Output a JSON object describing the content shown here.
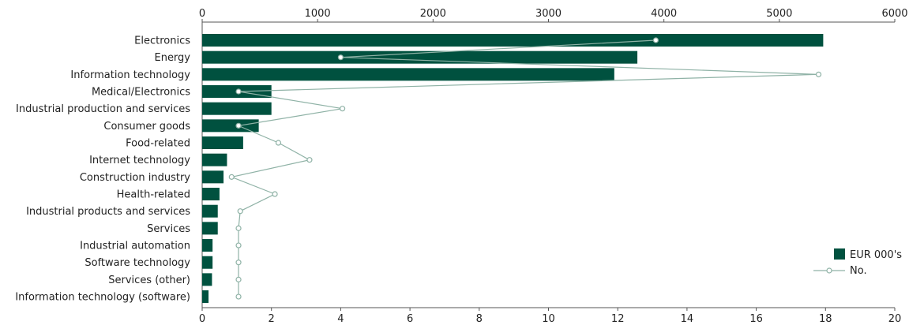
{
  "chart_data": {
    "type": "bar",
    "orientation": "horizontal",
    "categories": [
      "Electronics",
      "Energy",
      "Information technology",
      "Medical/Electronics",
      "Industrial production and services",
      "Consumer goods",
      "Food-related",
      "Internet technology",
      "Construction industry",
      "Health-related",
      "Industrial products and services",
      "Services",
      "Industrial automation",
      "Software technology",
      "Services (other)",
      "Information technology (software)"
    ],
    "series": [
      {
        "name": "EUR 000's",
        "type": "bar",
        "axis": "top",
        "color": "#00513f",
        "values": [
          5380,
          3770,
          3570,
          600,
          600,
          490,
          355,
          215,
          185,
          150,
          135,
          135,
          90,
          90,
          85,
          55
        ]
      },
      {
        "name": "No.",
        "type": "line",
        "axis": "bottom",
        "color": "#8fb2a6",
        "values": [
          13.1,
          4.0,
          17.8,
          1.05,
          4.05,
          1.05,
          2.2,
          3.1,
          0.85,
          2.1,
          1.1,
          1.05,
          1.05,
          1.05,
          1.05,
          1.05
        ]
      }
    ],
    "top_axis": {
      "range": [
        0,
        6000
      ],
      "ticks": [
        "0",
        "1000",
        "2000",
        "3000",
        "4000",
        "5000",
        "6000"
      ]
    },
    "bottom_axis": {
      "range": [
        0,
        20
      ],
      "ticks": [
        "0",
        "2",
        "4",
        "6",
        "8",
        "10",
        "12",
        "14",
        "16",
        "18",
        "20"
      ]
    },
    "legend_position": "bottom-right",
    "grid": false
  }
}
